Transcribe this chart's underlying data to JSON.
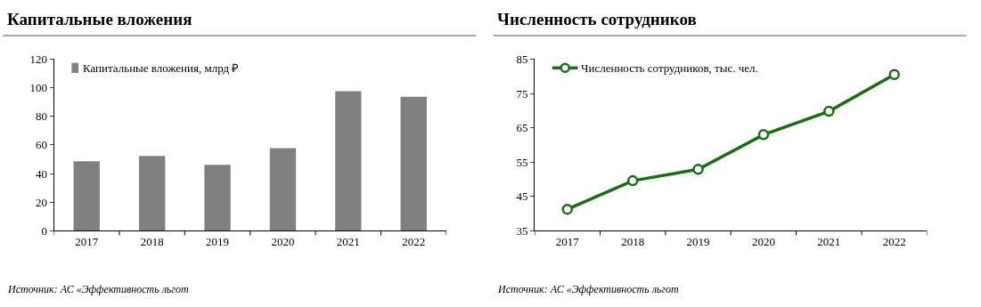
{
  "chart_data": [
    {
      "type": "bar",
      "title": "Капитальные вложения",
      "categories": [
        "2017",
        "2018",
        "2019",
        "2020",
        "2021",
        "2022"
      ],
      "series": [
        {
          "name": "Капитальные вложения, млрд ₽",
          "color": "#808080",
          "values": [
            48.6,
            52.4,
            46.1,
            57.8,
            97.5,
            93.7
          ]
        }
      ],
      "ylim": [
        0,
        120
      ],
      "yticks": [
        0,
        20,
        40,
        60,
        80,
        100,
        120
      ],
      "grid": false,
      "legend": "top left",
      "annotations": [
        "Источник: АС «Эффективность льгот"
      ]
    },
    {
      "type": "line",
      "title": "Численность сотрудников",
      "categories": [
        "2017",
        "2018",
        "2019",
        "2020",
        "2021",
        "2022"
      ],
      "series": [
        {
          "name": "Численность сотрудников, тыс. чел.",
          "color": "#1a6e12",
          "values": [
            41.3,
            49.6,
            52.9,
            63.0,
            69.8,
            80.5
          ]
        }
      ],
      "ylim": [
        35,
        85
      ],
      "yticks": [
        35,
        45,
        55,
        65,
        75,
        85
      ],
      "grid": false,
      "legend": "top left",
      "marker": "circle",
      "line_style": "solid",
      "annotations": [
        "Источник: АС «Эффективность льгот"
      ]
    }
  ]
}
